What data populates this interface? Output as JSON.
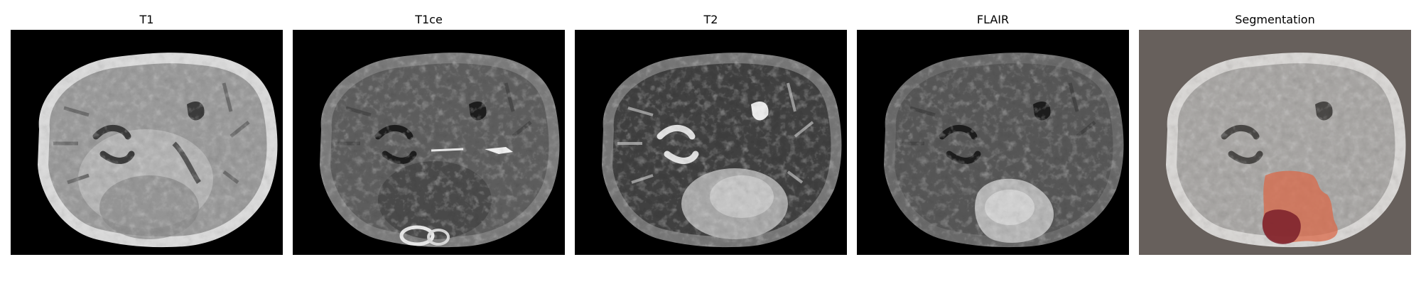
{
  "panels": [
    {
      "title": "T1",
      "kind": "t1"
    },
    {
      "title": "T1ce",
      "kind": "t1ce"
    },
    {
      "title": "T2",
      "kind": "t2"
    },
    {
      "title": "FLAIR",
      "kind": "flair"
    },
    {
      "title": "Segmentation",
      "kind": "seg"
    }
  ],
  "colors": {
    "page_background": "#ffffff",
    "scan_background": "#000000",
    "segmentation_background": "#67605c",
    "segmentation_edema": "#d9694a",
    "segmentation_core": "#7a1f2a"
  }
}
